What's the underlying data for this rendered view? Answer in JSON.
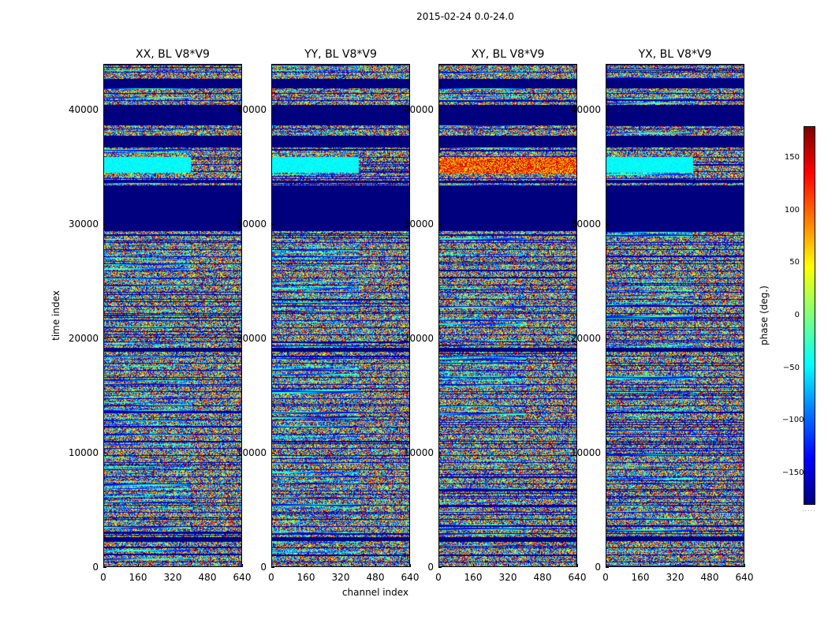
{
  "suptitle": "2015-02-24 0.0-24.0",
  "chart_data": {
    "type": "heatmap",
    "panels": [
      {
        "title": "XX, BL V8*V9"
      },
      {
        "title": "YY, BL V8*V9"
      },
      {
        "title": "XY, BL V8*V9"
      },
      {
        "title": "YX, BL V8*V9"
      }
    ],
    "xlabel": "channel index",
    "ylabel": "time index",
    "xlim": [
      0,
      640
    ],
    "ylim": [
      0,
      44000
    ],
    "xticks": [
      "0",
      "160",
      "320",
      "480",
      "640"
    ],
    "yticks": [
      "0",
      "10000",
      "20000",
      "30000",
      "40000"
    ],
    "colorbar": {
      "label": "phase (deg.)",
      "range": [
        -180,
        180
      ],
      "ticks": [
        "150",
        "100",
        "50",
        "0",
        "−50",
        "−100",
        "−150"
      ],
      "colormap": "jet"
    },
    "flagged_time_ranges": [
      [
        29500,
        31000
      ],
      [
        31000,
        33400
      ],
      [
        33700,
        33900
      ],
      [
        36800,
        37800
      ],
      [
        38700,
        40500
      ],
      [
        42000,
        42800
      ],
      [
        18900,
        19300
      ],
      [
        2400,
        2700
      ]
    ]
  }
}
